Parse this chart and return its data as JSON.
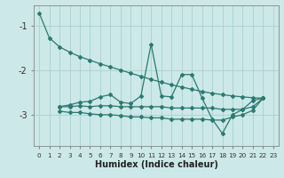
{
  "xlabel": "Humidex (Indice chaleur)",
  "background_color": "#cce8e8",
  "grid_color": "#aad0d0",
  "line_color": "#2a7a70",
  "xlim": [
    -0.5,
    23.5
  ],
  "ylim": [
    -3.7,
    -0.55
  ],
  "yticks": [
    -3,
    -2,
    -1
  ],
  "xticks": [
    0,
    1,
    2,
    3,
    4,
    5,
    6,
    7,
    8,
    9,
    10,
    11,
    12,
    13,
    14,
    15,
    16,
    17,
    18,
    19,
    20,
    21,
    22,
    23
  ],
  "line_a": [
    [
      0,
      -0.72
    ],
    [
      1,
      -1.28
    ],
    [
      2,
      -1.48
    ],
    [
      3,
      -1.6
    ],
    [
      4,
      -1.7
    ],
    [
      5,
      -1.78
    ],
    [
      6,
      -1.86
    ],
    [
      7,
      -1.93
    ],
    [
      8,
      -2.0
    ],
    [
      9,
      -2.07
    ],
    [
      10,
      -2.14
    ],
    [
      11,
      -2.21
    ],
    [
      12,
      -2.27
    ],
    [
      13,
      -2.33
    ],
    [
      14,
      -2.38
    ],
    [
      15,
      -2.43
    ],
    [
      16,
      -2.48
    ],
    [
      17,
      -2.52
    ],
    [
      18,
      -2.55
    ],
    [
      19,
      -2.58
    ],
    [
      20,
      -2.6
    ],
    [
      21,
      -2.62
    ],
    [
      22,
      -2.63
    ]
  ],
  "line_b": [
    [
      2,
      -2.82
    ],
    [
      3,
      -2.78
    ],
    [
      4,
      -2.72
    ],
    [
      5,
      -2.7
    ],
    [
      6,
      -2.6
    ],
    [
      7,
      -2.55
    ],
    [
      8,
      -2.72
    ],
    [
      9,
      -2.75
    ],
    [
      10,
      -2.58
    ],
    [
      11,
      -1.42
    ],
    [
      12,
      -2.58
    ],
    [
      13,
      -2.6
    ],
    [
      14,
      -2.1
    ],
    [
      15,
      -2.1
    ],
    [
      16,
      -2.62
    ],
    [
      17,
      -3.1
    ],
    [
      18,
      -3.42
    ],
    [
      19,
      -3.0
    ],
    [
      20,
      -2.88
    ],
    [
      21,
      -2.68
    ],
    [
      22,
      -2.63
    ]
  ],
  "line_c": [
    [
      2,
      -2.82
    ],
    [
      3,
      -2.82
    ],
    [
      4,
      -2.8
    ],
    [
      5,
      -2.82
    ],
    [
      6,
      -2.8
    ],
    [
      7,
      -2.8
    ],
    [
      8,
      -2.82
    ],
    [
      9,
      -2.82
    ],
    [
      10,
      -2.82
    ],
    [
      11,
      -2.82
    ],
    [
      12,
      -2.82
    ],
    [
      13,
      -2.85
    ],
    [
      14,
      -2.85
    ],
    [
      15,
      -2.85
    ],
    [
      16,
      -2.85
    ],
    [
      17,
      -2.85
    ],
    [
      18,
      -2.88
    ],
    [
      19,
      -2.88
    ],
    [
      20,
      -2.88
    ],
    [
      21,
      -2.82
    ],
    [
      22,
      -2.63
    ]
  ],
  "line_d": [
    [
      2,
      -2.92
    ],
    [
      3,
      -2.95
    ],
    [
      4,
      -2.95
    ],
    [
      5,
      -2.98
    ],
    [
      6,
      -3.0
    ],
    [
      7,
      -3.0
    ],
    [
      8,
      -3.02
    ],
    [
      9,
      -3.05
    ],
    [
      10,
      -3.05
    ],
    [
      11,
      -3.07
    ],
    [
      12,
      -3.07
    ],
    [
      13,
      -3.1
    ],
    [
      14,
      -3.1
    ],
    [
      15,
      -3.1
    ],
    [
      16,
      -3.1
    ],
    [
      17,
      -3.12
    ],
    [
      18,
      -3.12
    ],
    [
      19,
      -3.05
    ],
    [
      20,
      -3.0
    ],
    [
      21,
      -2.9
    ],
    [
      22,
      -2.63
    ]
  ]
}
